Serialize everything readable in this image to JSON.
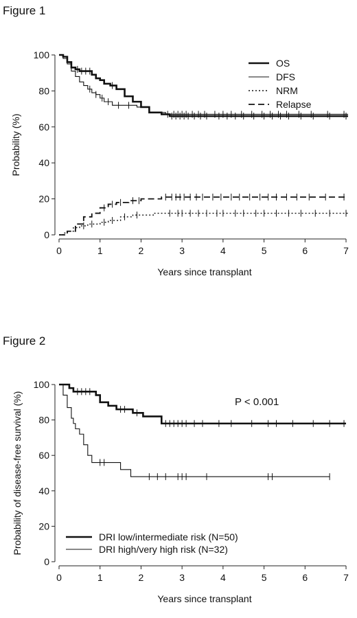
{
  "figures": [
    {
      "label": "Figure 1"
    },
    {
      "label": "Figure 2"
    }
  ],
  "chart_data": [
    {
      "type": "line",
      "subtype": "kaplan-meier",
      "title": "",
      "xlabel": "Years since transplant",
      "ylabel": "Probability (%)",
      "xlim": [
        0,
        7.1
      ],
      "ylim": [
        0,
        100
      ],
      "xticks": [
        0,
        1,
        2,
        3,
        4,
        5,
        6,
        7
      ],
      "yticks": [
        0,
        20,
        40,
        60,
        80,
        100
      ],
      "grid": false,
      "legend_position": "top-right",
      "series": [
        {
          "name": "OS",
          "style": "thick",
          "x": [
            0,
            0.1,
            0.2,
            0.3,
            0.4,
            0.5,
            0.6,
            0.8,
            0.9,
            1.0,
            1.1,
            1.25,
            1.4,
            1.6,
            1.8,
            2.0,
            2.2,
            2.5,
            2.7,
            7.05
          ],
          "y": [
            100,
            99,
            96,
            93,
            92,
            91,
            91,
            89,
            87,
            86,
            84,
            83,
            81,
            77,
            74,
            71,
            68,
            67,
            66,
            66
          ],
          "censor_x": [
            0.45,
            0.55,
            0.65,
            0.75,
            1.3,
            2.75,
            2.85,
            2.95,
            3.05,
            3.15,
            3.3,
            3.45,
            3.6,
            3.9,
            4.1,
            4.3,
            4.5,
            4.75,
            5.0,
            5.2,
            5.4,
            5.6,
            5.9,
            6.2,
            6.6,
            7.0
          ]
        },
        {
          "name": "DFS",
          "style": "thin",
          "x": [
            0,
            0.1,
            0.2,
            0.3,
            0.4,
            0.5,
            0.6,
            0.7,
            0.8,
            0.9,
            1.0,
            1.1,
            1.3,
            1.6,
            1.9,
            2.2,
            2.6,
            7.05
          ],
          "y": [
            100,
            98,
            95,
            91,
            88,
            85,
            83,
            81,
            79,
            78,
            76,
            74,
            72,
            72,
            71,
            68,
            67,
            67
          ],
          "censor_x": [
            0.75,
            0.9,
            1.05,
            1.2,
            1.45,
            1.7,
            2.65,
            2.8,
            2.9,
            3.0,
            3.1,
            3.25,
            3.4,
            3.55,
            3.8,
            4.0,
            4.2,
            4.45,
            4.7,
            4.95,
            5.15,
            5.35,
            5.55,
            5.85,
            6.15,
            6.55,
            6.95
          ]
        },
        {
          "name": "NRM",
          "style": "dotted",
          "x": [
            0,
            0.1,
            0.2,
            0.35,
            0.5,
            0.7,
            1.0,
            1.2,
            1.5,
            1.8,
            2.0,
            2.3,
            2.6,
            7.05
          ],
          "y": [
            0,
            1,
            2,
            4,
            5,
            6,
            7,
            8,
            10,
            11,
            11,
            12,
            12,
            12
          ],
          "censor_x": [
            0.6,
            0.8,
            1.1,
            1.3,
            1.6,
            1.9,
            2.7,
            2.9,
            3.0,
            3.2,
            3.4,
            3.6,
            3.85,
            4.0,
            4.3,
            4.5,
            4.8,
            5.0,
            5.3,
            5.6,
            5.9,
            6.25,
            6.6,
            7.0
          ]
        },
        {
          "name": "Relapse",
          "style": "dashed",
          "x": [
            0,
            0.2,
            0.4,
            0.6,
            0.8,
            1.0,
            1.2,
            1.4,
            1.7,
            2.0,
            2.5,
            2.7,
            7.05
          ],
          "y": [
            0,
            2,
            6,
            10,
            12,
            15,
            17,
            18,
            19,
            20,
            21,
            21,
            21
          ],
          "censor_x": [
            1.1,
            1.3,
            1.5,
            1.8,
            1.95,
            2.6,
            2.75,
            2.85,
            2.95,
            3.05,
            3.2,
            3.35,
            3.5,
            3.75,
            3.95,
            4.2,
            4.4,
            4.65,
            4.9,
            5.1,
            5.3,
            5.55,
            5.8,
            6.1,
            6.5,
            6.95
          ]
        }
      ]
    },
    {
      "type": "line",
      "subtype": "kaplan-meier",
      "title": "",
      "xlabel": "Years since transplant",
      "ylabel": "Probability of disease-free survival (%)",
      "xlim": [
        0,
        7.1
      ],
      "ylim": [
        0,
        100
      ],
      "xticks": [
        0,
        1,
        2,
        3,
        4,
        5,
        6,
        7
      ],
      "yticks": [
        0,
        20,
        40,
        60,
        80,
        100
      ],
      "grid": false,
      "legend_position": "bottom-left",
      "annotation": "P < 0.001",
      "series": [
        {
          "name": "DRI low/intermediate risk (N=50)",
          "style": "thick",
          "x": [
            0,
            0.25,
            0.35,
            0.5,
            0.9,
            1.0,
            1.2,
            1.4,
            1.8,
            2.05,
            2.5,
            7.0
          ],
          "y": [
            100,
            98,
            96,
            96,
            94,
            90,
            88,
            86,
            84,
            82,
            78,
            78
          ],
          "censor_x": [
            0.45,
            0.55,
            0.65,
            0.75,
            1.5,
            1.6,
            1.9,
            2.6,
            2.7,
            2.8,
            2.9,
            3.0,
            3.1,
            3.3,
            3.5,
            3.9,
            4.2,
            4.7,
            5.1,
            5.3,
            5.7,
            6.2,
            6.6,
            6.95
          ]
        },
        {
          "name": "DRI high/very high risk (N=32)",
          "style": "thin",
          "x": [
            0,
            0.1,
            0.2,
            0.3,
            0.35,
            0.4,
            0.5,
            0.6,
            0.7,
            0.8,
            1.2,
            1.5,
            1.75,
            6.6
          ],
          "y": [
            100,
            94,
            87,
            81,
            78,
            75,
            72,
            66,
            60,
            56,
            56,
            52,
            48,
            48
          ],
          "censor_x": [
            1.0,
            1.1,
            2.2,
            2.4,
            2.6,
            2.9,
            3.0,
            3.1,
            3.6,
            5.1,
            5.2,
            6.6
          ]
        }
      ]
    }
  ]
}
